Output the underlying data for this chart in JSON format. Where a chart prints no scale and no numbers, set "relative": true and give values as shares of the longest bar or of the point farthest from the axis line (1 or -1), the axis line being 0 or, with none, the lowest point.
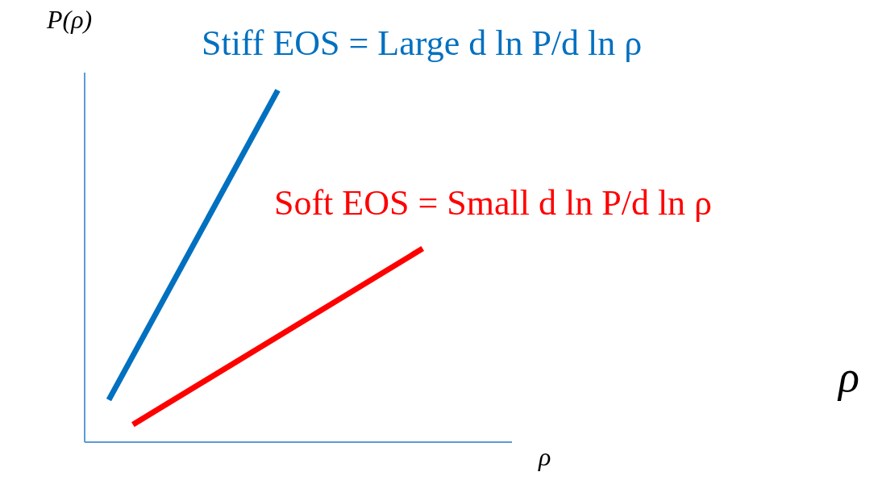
{
  "chart_data": {
    "type": "line",
    "relative": true,
    "xlabel": "ρ",
    "ylabel": "P(ρ)",
    "marker": "none",
    "line_style": "solid",
    "categories": [
      null,
      null,
      null,
      null,
      null,
      null,
      null,
      null,
      null,
      null,
      null,
      null,
      null,
      null,
      null,
      null,
      null,
      null
    ],
    "series": [
      {
        "name": "Stiff EOS = Large d ln P/d ln ρ",
        "color": "#0070c0",
        "values": [
          null,
          0.12,
          null,
          null,
          null,
          null,
          null,
          null,
          1.0,
          null,
          null,
          null,
          null,
          null,
          null,
          null,
          null,
          null
        ]
      },
      {
        "name": "Soft EOS = Small d ln P/d ln ρ",
        "color": "#ff0000",
        "values": [
          null,
          null,
          0.05,
          null,
          null,
          null,
          null,
          null,
          null,
          null,
          null,
          null,
          null,
          null,
          0.55,
          null,
          null,
          null
        ]
      }
    ],
    "annotations": [
      "ρ"
    ]
  }
}
